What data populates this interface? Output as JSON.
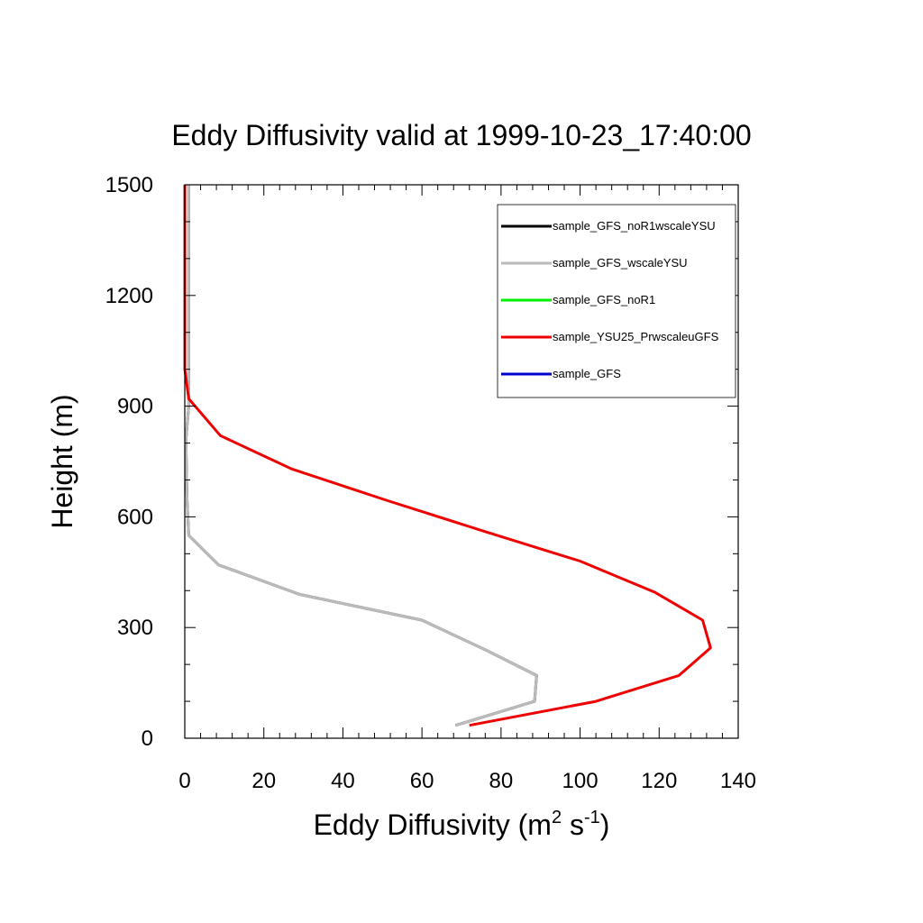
{
  "chart_data": {
    "type": "line",
    "title": "Eddy Diffusivity valid at 1999-10-23_17:40:00",
    "xlabel": "Eddy Diffusivity (m",
    "xlabel_sup1": "2",
    "xlabel_mid": " s",
    "xlabel_sup2": "-1",
    "xlabel_end": ")",
    "ylabel": "Height (m)",
    "xlim": [
      0,
      140
    ],
    "ylim": [
      0,
      1500
    ],
    "xticks": [
      "0",
      "20",
      "40",
      "60",
      "80",
      "100",
      "120",
      "140"
    ],
    "yticks": [
      "0",
      "300",
      "600",
      "900",
      "1200",
      "1500"
    ],
    "legend_position": "top-right",
    "series": [
      {
        "name": "sample_GFS_noR1wscaleYSU",
        "color": "#000000",
        "points": [
          [
            68.5,
            35
          ],
          [
            88.5,
            100
          ],
          [
            89,
            170
          ],
          [
            76,
            240
          ],
          [
            60,
            320
          ],
          [
            29,
            390
          ],
          [
            8.5,
            470
          ],
          [
            1,
            550
          ],
          [
            0.6,
            640
          ],
          [
            0.4,
            730
          ],
          [
            0.3,
            810
          ],
          [
            1,
            900
          ],
          [
            1,
            1000
          ],
          [
            1,
            1200
          ],
          [
            1,
            1500
          ]
        ]
      },
      {
        "name": "sample_GFS_wscaleYSU",
        "color": "#bbbbbb",
        "points": [
          [
            68.5,
            35
          ],
          [
            88.5,
            100
          ],
          [
            89,
            170
          ],
          [
            76,
            240
          ],
          [
            60,
            320
          ],
          [
            29,
            390
          ],
          [
            8.5,
            470
          ],
          [
            1,
            550
          ],
          [
            0.6,
            640
          ],
          [
            0.4,
            730
          ],
          [
            0.3,
            810
          ],
          [
            1,
            900
          ],
          [
            1,
            1000
          ],
          [
            1,
            1200
          ],
          [
            1,
            1500
          ]
        ]
      },
      {
        "name": "sample_GFS_noR1",
        "color": "#00ee00",
        "points": []
      },
      {
        "name": "sample_YSU25_PrwscaleuGFS",
        "color": "#ee0000",
        "points": [
          [
            72,
            35
          ],
          [
            104,
            100
          ],
          [
            125,
            170
          ],
          [
            133,
            245
          ],
          [
            131,
            320
          ],
          [
            119,
            395
          ],
          [
            100,
            480
          ],
          [
            76,
            560
          ],
          [
            51,
            645
          ],
          [
            27,
            730
          ],
          [
            9,
            820
          ],
          [
            1,
            920
          ],
          [
            0,
            1000
          ],
          [
            0,
            1200
          ],
          [
            0,
            1500
          ]
        ]
      },
      {
        "name": "sample_GFS",
        "color": "#0000cc",
        "points": []
      }
    ]
  }
}
